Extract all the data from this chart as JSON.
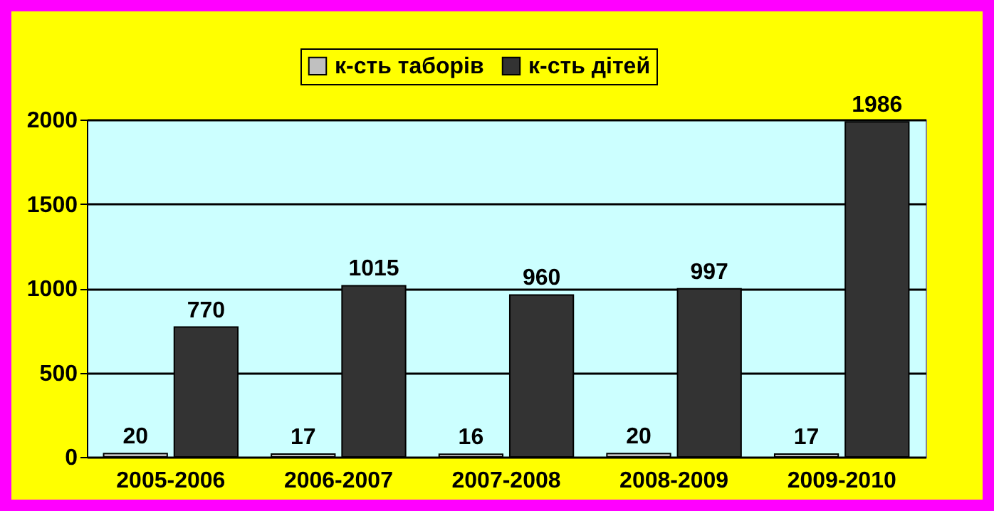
{
  "chart_data": {
    "type": "bar",
    "categories": [
      "2005-2006",
      "2006-2007",
      "2007-2008",
      "2008-2009",
      "2009-2010"
    ],
    "series": [
      {
        "name": "к-сть таборів",
        "color": "#c0c0c0",
        "values": [
          20,
          17,
          16,
          20,
          17
        ]
      },
      {
        "name": "к-сть дітей",
        "color": "#333333",
        "values": [
          770,
          1015,
          960,
          997,
          1986
        ]
      }
    ],
    "ylim": [
      0,
      2000
    ],
    "yticks": [
      0,
      500,
      1000,
      1500,
      2000
    ],
    "grid": "y",
    "legend": "top",
    "data_labels": true
  }
}
